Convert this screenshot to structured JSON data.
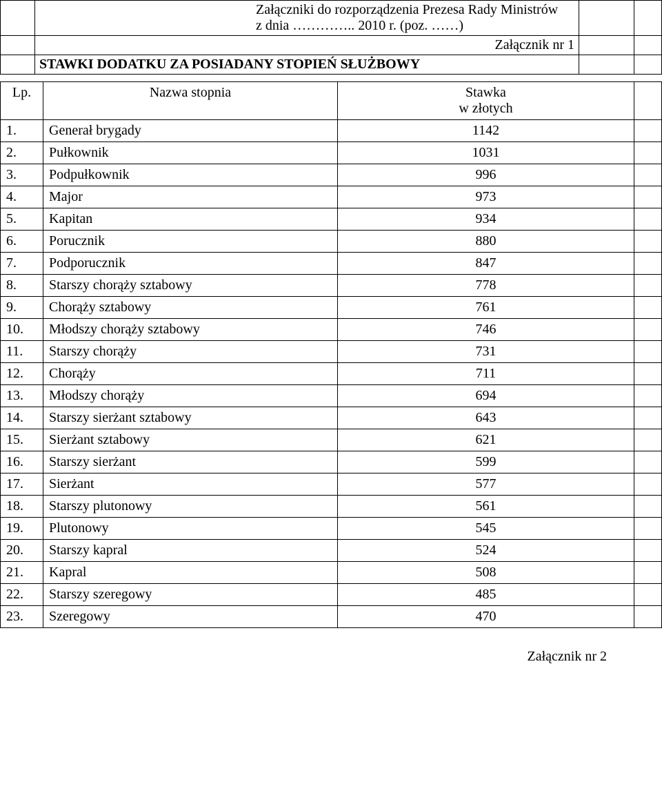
{
  "header": {
    "line1": "Załączniki do rozporządzenia  Prezesa Rady Ministrów",
    "line2": "z dnia ………….. 2010 r. (poz. ……)",
    "attachment": "Załącznik nr 1"
  },
  "title": "STAWKI DODATKU ZA POSIADANY STOPIEŃ SŁUŻBOWY",
  "columns": {
    "lp": "Lp.",
    "name": "Nazwa stopnia",
    "value_line1": "Stawka",
    "value_line2": "w złotych"
  },
  "rows": [
    {
      "lp": "1.",
      "name": "Generał brygady",
      "value": "1142"
    },
    {
      "lp": "2.",
      "name": "Pułkownik",
      "value": "1031"
    },
    {
      "lp": "3.",
      "name": "Podpułkownik",
      "value": "996"
    },
    {
      "lp": "4.",
      "name": "Major",
      "value": "973"
    },
    {
      "lp": "5.",
      "name": "Kapitan",
      "value": "934"
    },
    {
      "lp": "6.",
      "name": "Porucznik",
      "value": "880"
    },
    {
      "lp": "7.",
      "name": "Podporucznik",
      "value": "847"
    },
    {
      "lp": "8.",
      "name": "Starszy chorąży sztabowy",
      "value": "778"
    },
    {
      "lp": "9.",
      "name": "Chorąży sztabowy",
      "value": "761"
    },
    {
      "lp": "10.",
      "name": "Młodszy chorąży sztabowy",
      "value": "746"
    },
    {
      "lp": "11.",
      "name": "Starszy chorąży",
      "value": "731"
    },
    {
      "lp": "12.",
      "name": "Chorąży",
      "value": "711"
    },
    {
      "lp": "13.",
      "name": "Młodszy chorąży",
      "value": "694"
    },
    {
      "lp": "14.",
      "name": "Starszy sierżant sztabowy",
      "value": "643"
    },
    {
      "lp": "15.",
      "name": "Sierżant sztabowy",
      "value": "621"
    },
    {
      "lp": "16.",
      "name": "Starszy sierżant",
      "value": "599"
    },
    {
      "lp": "17.",
      "name": "Sierżant",
      "value": "577"
    },
    {
      "lp": "18.",
      "name": "Starszy plutonowy",
      "value": "561"
    },
    {
      "lp": "19.",
      "name": "Plutonowy",
      "value": "545"
    },
    {
      "lp": "20.",
      "name": "Starszy kapral",
      "value": "524"
    },
    {
      "lp": "21.",
      "name": "Kapral",
      "value": "508"
    },
    {
      "lp": "22.",
      "name": "Starszy szeregowy",
      "value": "485"
    },
    {
      "lp": "23.",
      "name": "Szeregowy",
      "value": "470"
    }
  ],
  "footer": "Załącznik nr 2",
  "style": {
    "font_family": "Times New Roman",
    "text_color": "#000000",
    "background_color": "#ffffff",
    "border_color": "#000000",
    "body_fontsize": 20,
    "title_fontsize": 21,
    "title_fontweight": "bold"
  }
}
